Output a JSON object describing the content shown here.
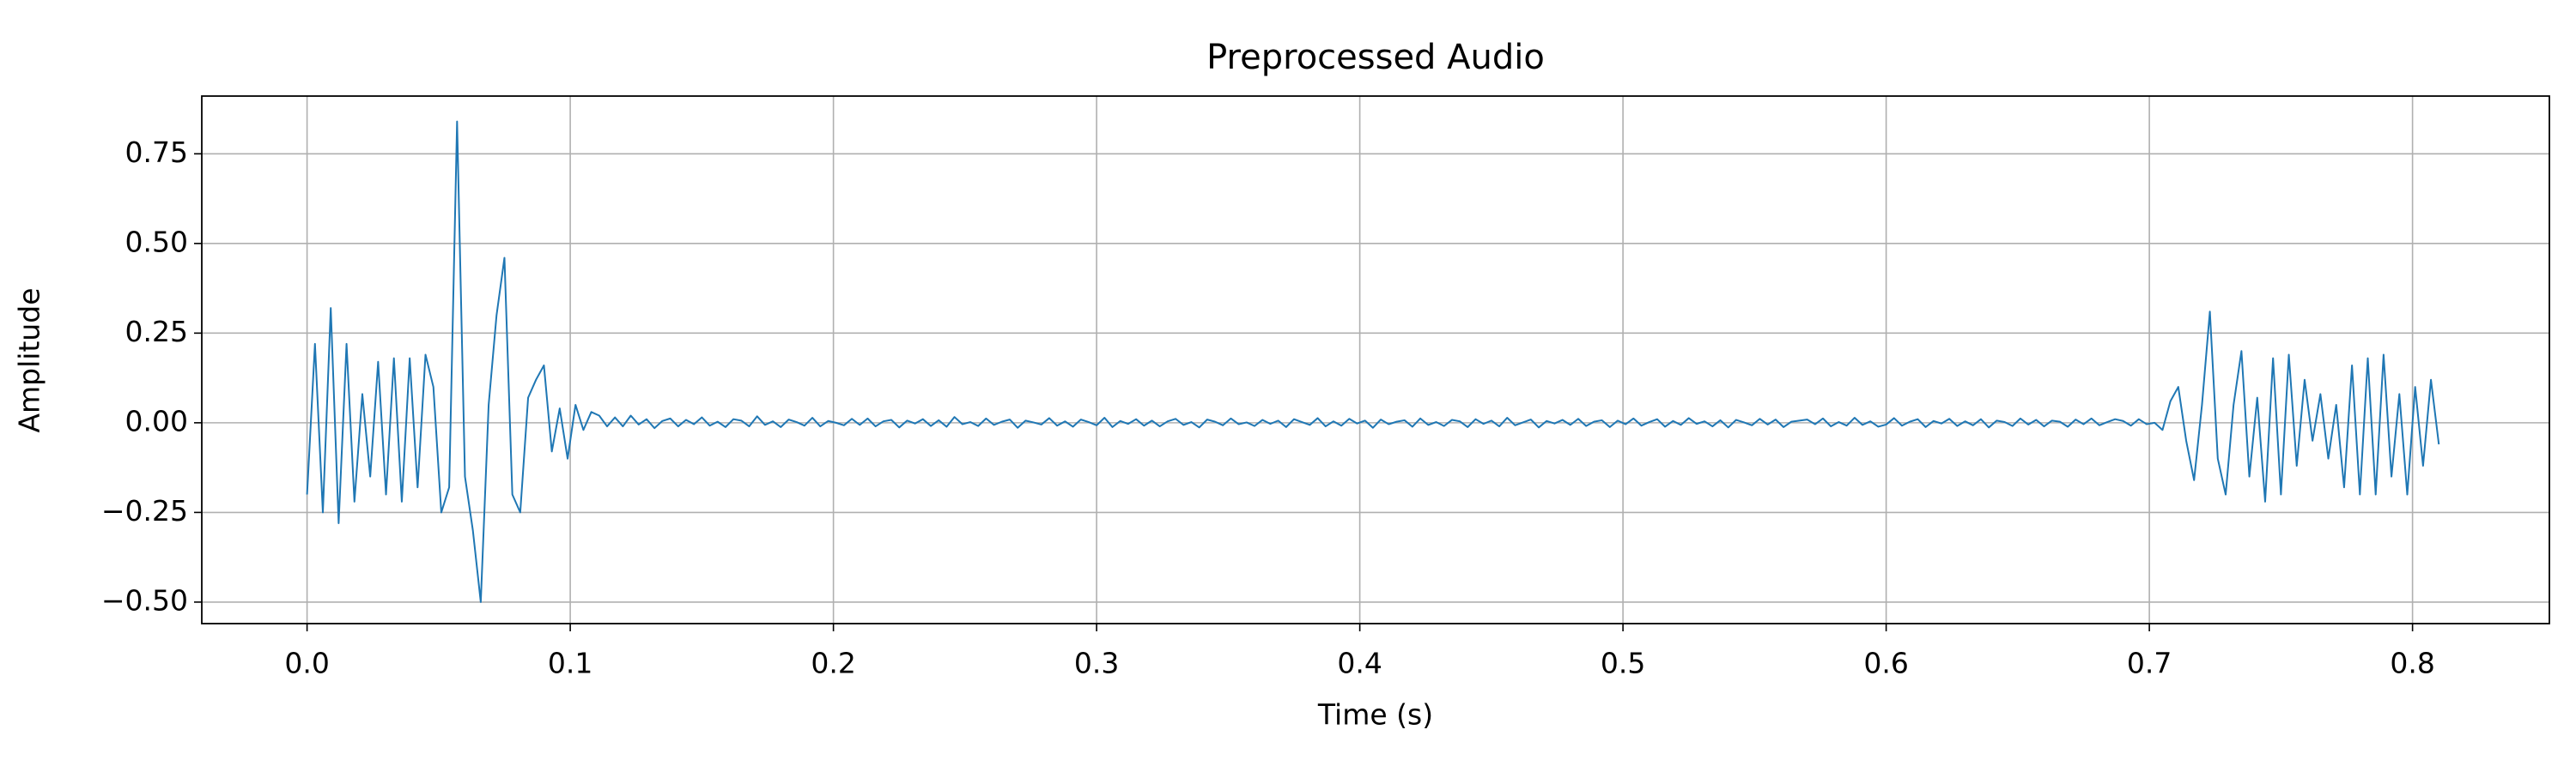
{
  "chart_data": {
    "type": "line",
    "title": "Preprocessed Audio",
    "xlabel": "Time (s)",
    "ylabel": "Amplitude",
    "color": "#1f77b4",
    "grid": true,
    "xlim": [
      -0.04,
      0.852
    ],
    "ylim": [
      -0.56,
      0.911
    ],
    "xticks": [
      {
        "value": 0,
        "label": "0.0"
      },
      0.1,
      0.2,
      0.3,
      0.4,
      0.5,
      0.6,
      0.7,
      0.8
    ],
    "yticks": [
      {
        "value": -0.5,
        "label": "−0.50"
      },
      {
        "value": -0.25,
        "label": "−0.25"
      },
      {
        "value": 0,
        "label": "0.00"
      },
      0.25,
      {
        "value": 0.5,
        "label": "0.50"
      },
      0.75
    ],
    "x": [
      0,
      0.003,
      0.006,
      0.009,
      0.012,
      0.015,
      0.018,
      0.021,
      0.024,
      0.027,
      0.03,
      0.033,
      0.036,
      0.039,
      0.042,
      0.045,
      0.048,
      0.051,
      0.054,
      0.057,
      0.06,
      0.063,
      0.066,
      0.069,
      0.072,
      0.075,
      0.078,
      0.081,
      0.084,
      0.087,
      0.09,
      0.093,
      0.096,
      0.099,
      0.102,
      0.105,
      0.108,
      0.111,
      0.114,
      0.117,
      0.12,
      0.123,
      0.126,
      0.129,
      0.132,
      0.135,
      0.138,
      0.141,
      0.144,
      0.147,
      0.15,
      0.153,
      0.156,
      0.159,
      0.162,
      0.165,
      0.168,
      0.171,
      0.174,
      0.177,
      0.18,
      0.183,
      0.186,
      0.189,
      0.192,
      0.195,
      0.198,
      0.201,
      0.204,
      0.207,
      0.21,
      0.213,
      0.216,
      0.219,
      0.222,
      0.225,
      0.228,
      0.231,
      0.234,
      0.237,
      0.24,
      0.243,
      0.246,
      0.249,
      0.252,
      0.255,
      0.258,
      0.261,
      0.264,
      0.267,
      0.27,
      0.273,
      0.276,
      0.279,
      0.282,
      0.285,
      0.288,
      0.291,
      0.294,
      0.297,
      0.3,
      0.303,
      0.306,
      0.309,
      0.312,
      0.315,
      0.318,
      0.321,
      0.324,
      0.327,
      0.33,
      0.333,
      0.336,
      0.339,
      0.342,
      0.345,
      0.348,
      0.351,
      0.354,
      0.357,
      0.36,
      0.363,
      0.366,
      0.369,
      0.372,
      0.375,
      0.378,
      0.381,
      0.384,
      0.387,
      0.39,
      0.393,
      0.396,
      0.399,
      0.402,
      0.405,
      0.408,
      0.411,
      0.414,
      0.417,
      0.42,
      0.423,
      0.426,
      0.429,
      0.432,
      0.435,
      0.438,
      0.441,
      0.444,
      0.447,
      0.45,
      0.453,
      0.456,
      0.459,
      0.462,
      0.465,
      0.468,
      0.471,
      0.474,
      0.477,
      0.48,
      0.483,
      0.486,
      0.489,
      0.492,
      0.495,
      0.498,
      0.501,
      0.504,
      0.507,
      0.51,
      0.513,
      0.516,
      0.519,
      0.522,
      0.525,
      0.528,
      0.531,
      0.534,
      0.537,
      0.54,
      0.543,
      0.546,
      0.549,
      0.552,
      0.555,
      0.558,
      0.561,
      0.564,
      0.567,
      0.57,
      0.573,
      0.576,
      0.579,
      0.582,
      0.585,
      0.588,
      0.591,
      0.594,
      0.597,
      0.6,
      0.603,
      0.606,
      0.609,
      0.612,
      0.615,
      0.618,
      0.621,
      0.624,
      0.627,
      0.63,
      0.633,
      0.636,
      0.639,
      0.642,
      0.645,
      0.648,
      0.651,
      0.654,
      0.657,
      0.66,
      0.663,
      0.666,
      0.669,
      0.672,
      0.675,
      0.678,
      0.681,
      0.684,
      0.687,
      0.69,
      0.693,
      0.696,
      0.699,
      0.702,
      0.705,
      0.708,
      0.711,
      0.714,
      0.717,
      0.72,
      0.723,
      0.726,
      0.729,
      0.732,
      0.735,
      0.738,
      0.741,
      0.744,
      0.747,
      0.75,
      0.753,
      0.756,
      0.759,
      0.762,
      0.765,
      0.768,
      0.771,
      0.774,
      0.777,
      0.78,
      0.783,
      0.786,
      0.789,
      0.792,
      0.795,
      0.798,
      0.801,
      0.804,
      0.807,
      0.81
    ],
    "values": [
      -0.2,
      0.22,
      -0.25,
      0.32,
      -0.28,
      0.22,
      -0.22,
      0.08,
      -0.15,
      0.17,
      -0.2,
      0.18,
      -0.22,
      0.18,
      -0.18,
      0.19,
      0.1,
      -0.25,
      -0.18,
      0.84,
      -0.15,
      -0.3,
      -0.5,
      0.05,
      0.3,
      0.46,
      -0.2,
      -0.25,
      0.07,
      0.12,
      0.16,
      -0.08,
      0.04,
      -0.1,
      0.05,
      -0.02,
      0.03,
      0.02,
      -0.01,
      0.015,
      -0.01,
      0.02,
      -0.005,
      0.01,
      -0.015,
      0.005,
      0.012,
      -0.01,
      0.008,
      -0.004,
      0.015,
      -0.008,
      0.003,
      -0.012,
      0.01,
      0.006,
      -0.01,
      0.018,
      -0.006,
      0.004,
      -0.012,
      0.009,
      0.002,
      -0.008,
      0.014,
      -0.01,
      0.005,
      0,
      -0.007,
      0.011,
      -0.006,
      0.012,
      -0.01,
      0.004,
      0.008,
      -0.013,
      0.006,
      -0.002,
      0.01,
      -0.009,
      0.007,
      -0.011,
      0.016,
      -0.004,
      0.002,
      -0.009,
      0.012,
      -0.006,
      0.003,
      0.009,
      -0.014,
      0.006,
      0.001,
      -0.005,
      0.013,
      -0.008,
      0.004,
      -0.011,
      0.009,
      0.002,
      -0.007,
      0.014,
      -0.012,
      0.005,
      -0.003,
      0.01,
      -0.008,
      0.006,
      -0.01,
      0.004,
      0.011,
      -0.006,
      0.002,
      -0.013,
      0.009,
      0.003,
      -0.007,
      0.012,
      -0.004,
      0.001,
      -0.009,
      0.008,
      -0.003,
      0.006,
      -0.012,
      0.01,
      0.002,
      -0.006,
      0.013,
      -0.01,
      0.004,
      -0.008,
      0.011,
      -0.002,
      0.006,
      -0.014,
      0.009,
      -0.004,
      0.003,
      0.007,
      -0.011,
      0.012,
      -0.006,
      0.002,
      -0.009,
      0.008,
      0.004,
      -0.012,
      0.01,
      -0.003,
      0.006,
      -0.01,
      0.014,
      -0.007,
      0.001,
      0.009,
      -0.013,
      0.005,
      -0.002,
      0.008,
      -0.006,
      0.011,
      -0.009,
      0.003,
      0.007,
      -0.012,
      0.006,
      -0.004,
      0.012,
      -0.008,
      0.002,
      0.01,
      -0.011,
      0.005,
      -0.006,
      0.013,
      -0.003,
      0.004,
      -0.01,
      0.007,
      -0.013,
      0.008,
      0.001,
      -0.007,
      0.011,
      -0.005,
      0.009,
      -0.012,
      0.003,
      0.006,
      0.009,
      -0.004,
      0.012,
      -0.01,
      0.002,
      -0.008,
      0.014,
      -0.006,
      0.004,
      -0.011,
      -0.005,
      0.013,
      -0.008,
      0.003,
      0.01,
      -0.012,
      0.005,
      -0.002,
      0.011,
      -0.009,
      0.004,
      -0.007,
      0.01,
      -0.013,
      0.006,
      0.002,
      -0.009,
      0.012,
      -0.005,
      0.008,
      -0.01,
      0.006,
      0.003,
      -0.011,
      0.009,
      -0.004,
      0.012,
      -0.007,
      0.002,
      0.01,
      0.005,
      -0.008,
      0.01,
      -0.004,
      0,
      -0.02,
      0.06,
      0.1,
      -0.05,
      -0.16,
      0.05,
      0.31,
      -0.1,
      -0.2,
      0.05,
      0.2,
      -0.15,
      0.07,
      -0.22,
      0.18,
      -0.2,
      0.19,
      -0.12,
      0.12,
      -0.05,
      0.08,
      -0.1,
      0.05,
      -0.18,
      0.16,
      -0.2,
      0.18,
      -0.2,
      0.19,
      -0.15,
      0.08,
      -0.2,
      0.1,
      -0.12,
      0.12,
      -0.06
    ]
  }
}
